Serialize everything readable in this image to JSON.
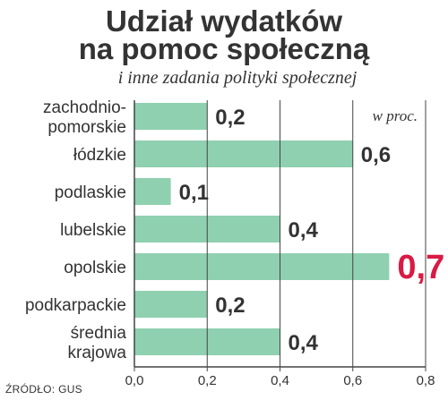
{
  "header": {
    "title_line1": "Udział wydatków",
    "title_line2": "na pomoc społeczną",
    "subtitle": "i inne zadania polityki społecznej"
  },
  "source": "ŹRÓDŁO: GUS",
  "colors": {
    "bar": "#8fd0b0",
    "highlight": "#d81b45",
    "text": "#333333",
    "grid": "#444444"
  },
  "chart_data": {
    "type": "bar",
    "orientation": "horizontal",
    "unit_label": "w proc.",
    "categories": [
      [
        "zachodnio-",
        "pomorskie"
      ],
      [
        "łódzkie"
      ],
      [
        "podlaskie"
      ],
      [
        "lubelskie"
      ],
      [
        "opolskie"
      ],
      [
        "podkarpackie"
      ],
      [
        "średnia",
        "krajowa"
      ]
    ],
    "values": [
      0.2,
      0.6,
      0.1,
      0.4,
      0.7,
      0.2,
      0.4
    ],
    "value_labels": [
      "0,2",
      "0,6",
      "0,1",
      "0,4",
      "0,7",
      "0,2",
      "0,4"
    ],
    "highlight_index": 4,
    "xlim": [
      0,
      0.8
    ],
    "xticks": [
      0,
      0.2,
      0.4,
      0.6,
      0.8
    ],
    "xtick_labels": [
      "0,0",
      "0,2",
      "0,4",
      "0,6",
      "0,8"
    ],
    "grid": true
  }
}
